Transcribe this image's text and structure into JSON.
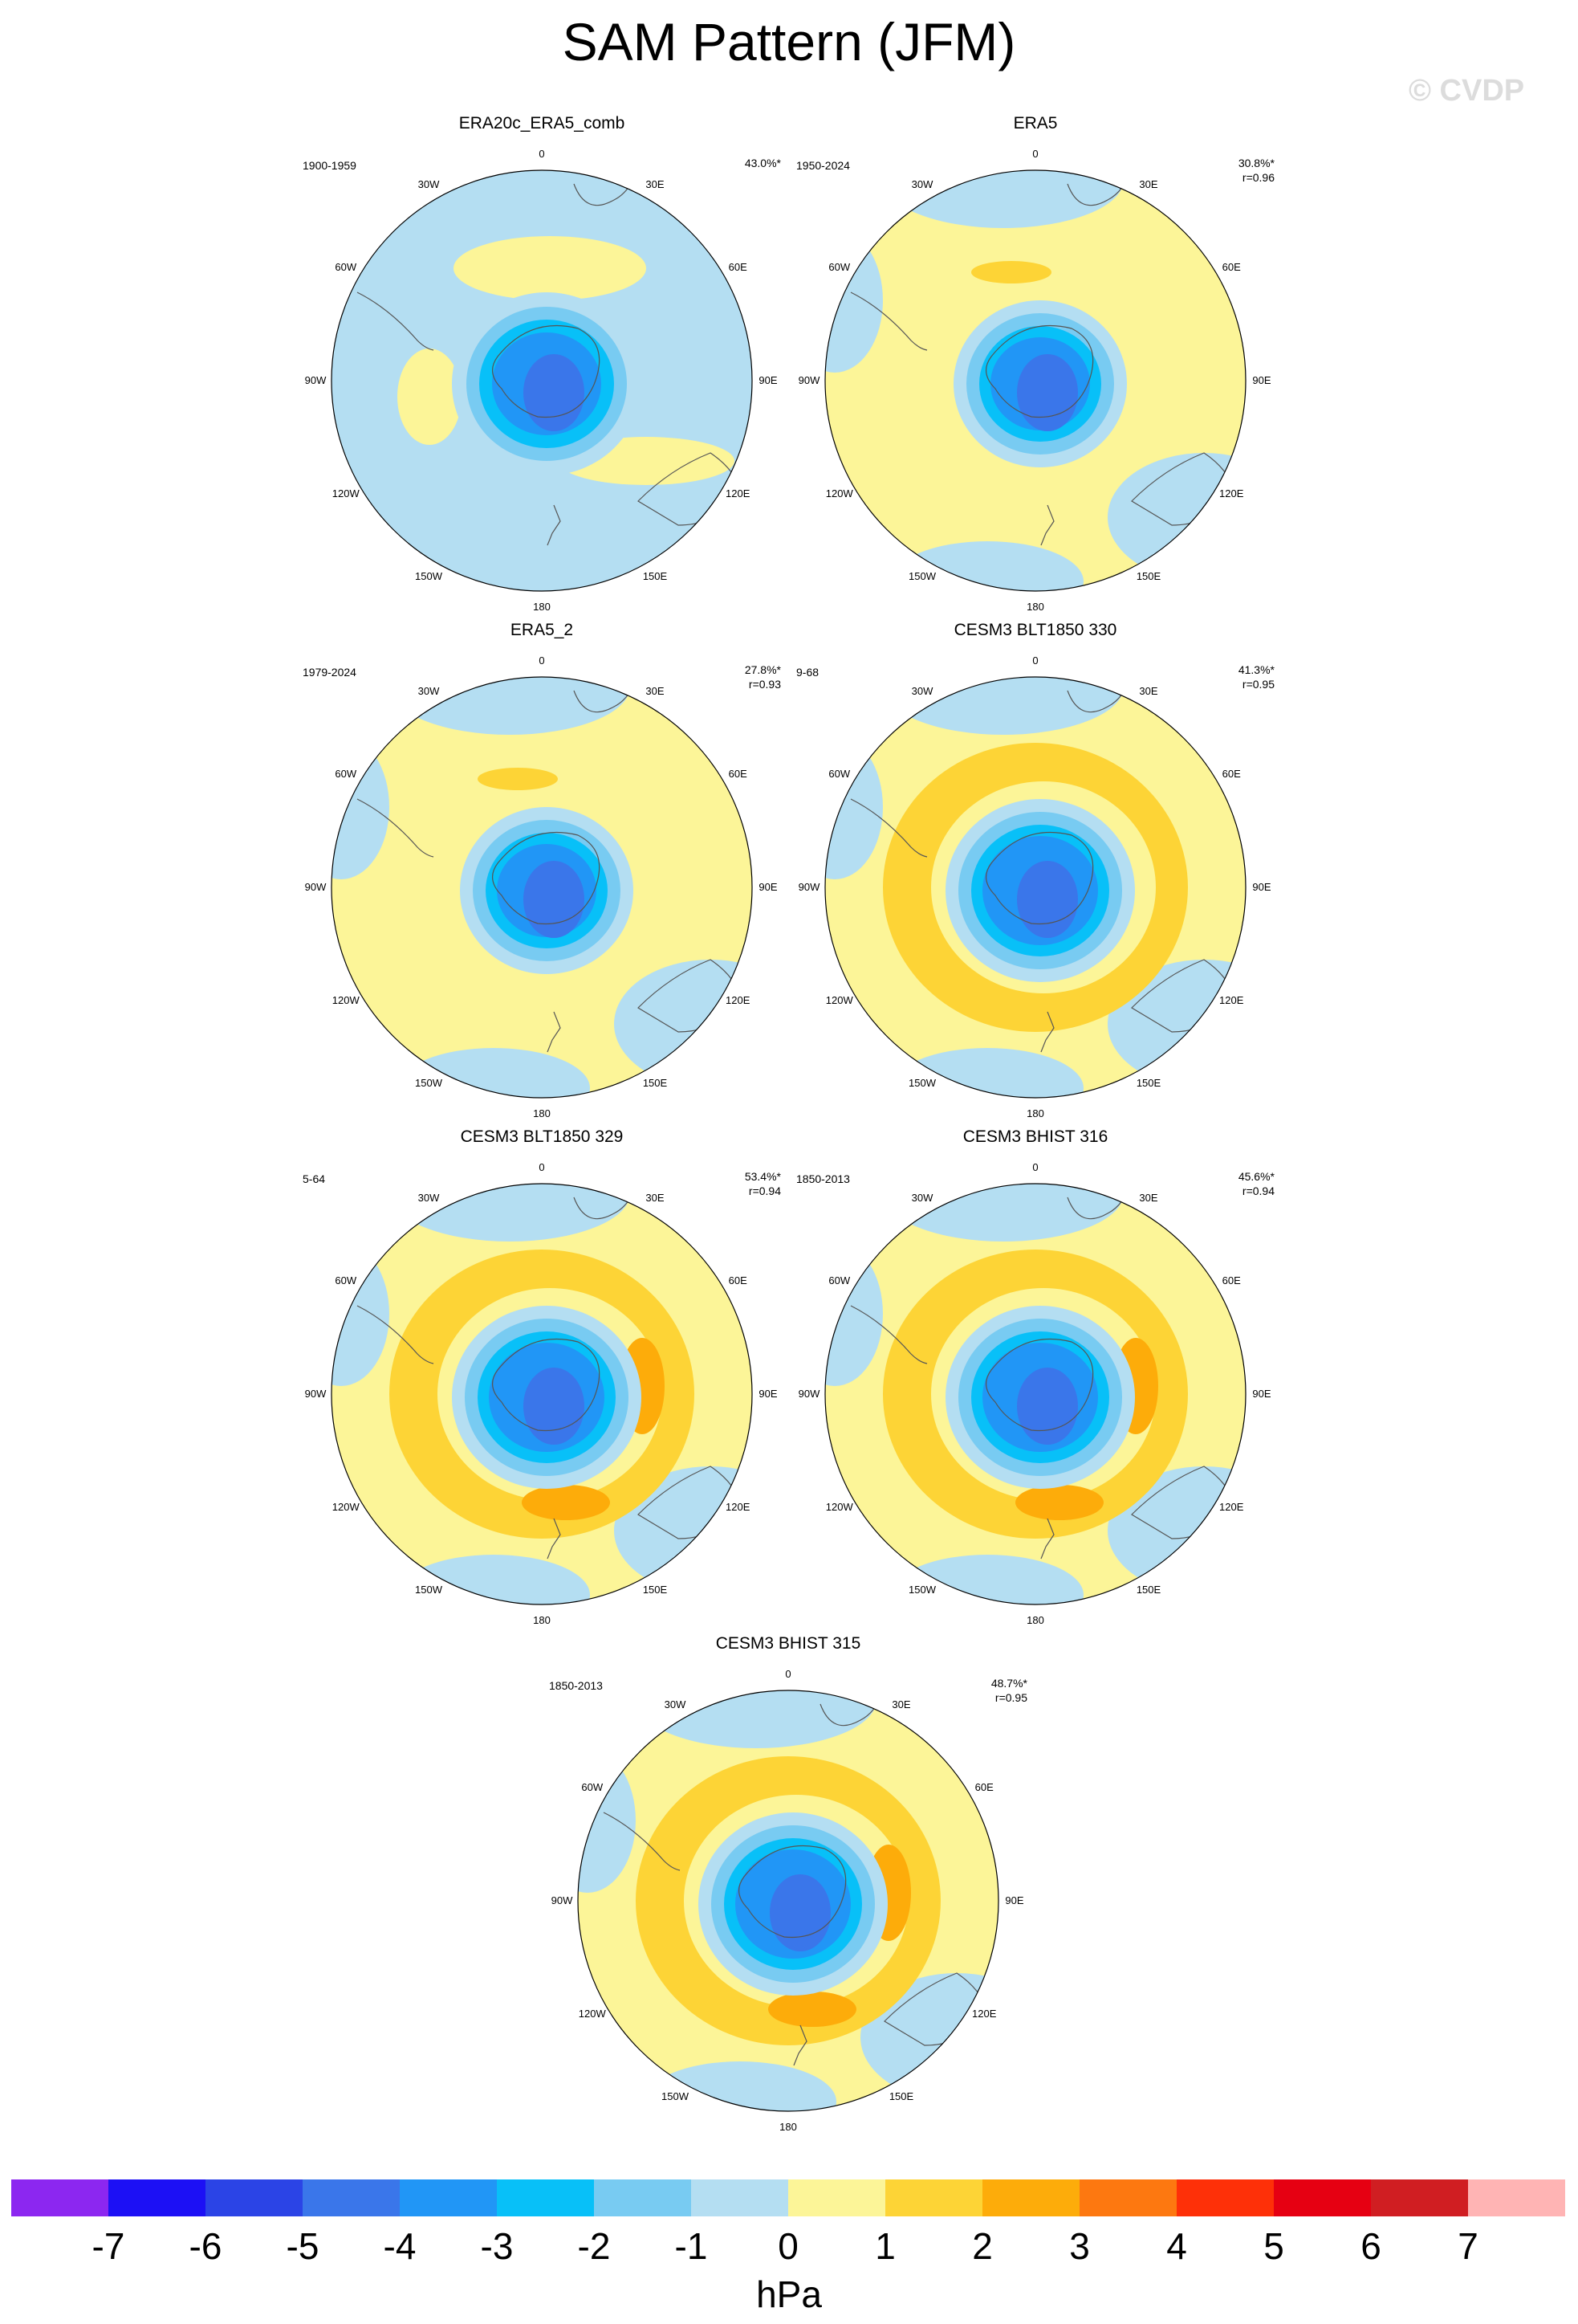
{
  "title": "SAM Pattern (JFM)",
  "watermark": "© CVDP",
  "panels": [
    {
      "title": "ERA20c_ERA5_comb",
      "period": "1900-1959",
      "variance": "43.0%*",
      "corr": "",
      "strength": 0
    },
    {
      "title": "ERA5",
      "period": "1950-2024",
      "variance": "30.8%*",
      "corr": "r=0.96",
      "strength": 1
    },
    {
      "title": "ERA5_2",
      "period": "1979-2024",
      "variance": "27.8%*",
      "corr": "r=0.93",
      "strength": 1
    },
    {
      "title": "CESM3 BLT1850 330",
      "period": "9-68",
      "variance": "41.3%*",
      "corr": "r=0.95",
      "strength": 2
    },
    {
      "title": "CESM3 BLT1850 329",
      "period": "5-64",
      "variance": "53.4%*",
      "corr": "r=0.94",
      "strength": 3
    },
    {
      "title": "CESM3 BHIST 316",
      "period": "1850-2013",
      "variance": "45.6%*",
      "corr": "r=0.94",
      "strength": 3
    },
    {
      "title": "CESM3 BHIST 315",
      "period": "1850-2013",
      "variance": "48.7%*",
      "corr": "r=0.95",
      "strength": 3
    }
  ],
  "map_labels": {
    "lon_top": "0",
    "lon_bottom": "180",
    "lon_30w": "30W",
    "lon_30e": "30E",
    "lon_60w": "60W",
    "lon_60e": "60E",
    "lon_90w": "90W",
    "lon_90e": "90E",
    "lon_120w": "120W",
    "lon_120e": "120E",
    "lon_150w": "150W",
    "lon_150e": "150E"
  },
  "colorbar": {
    "unit": "hPa",
    "ticks": [
      "-7",
      "-6",
      "-5",
      "-4",
      "-3",
      "-2",
      "-1",
      "0",
      "1",
      "2",
      "3",
      "4",
      "5",
      "6",
      "7"
    ],
    "colors": [
      "#8c27f0",
      "#1c10f5",
      "#2b44e6",
      "#3a76ea",
      "#2196f6",
      "#08c0f8",
      "#78cbf2",
      "#b4def2",
      "#fcf598",
      "#fdd436",
      "#fdac0a",
      "#fd7810",
      "#fe3008",
      "#e60012",
      "#d01e22",
      "#ffb4b4"
    ]
  },
  "legend_colors": {
    "neg7": "#8c27f0",
    "neg6": "#1c10f5",
    "neg5": "#2b44e6",
    "neg4": "#3a76ea",
    "neg3": "#2196f6",
    "neg2": "#08c0f8",
    "neg1": "#78cbf2",
    "neg0": "#b4def2",
    "pos0": "#fcf598",
    "pos1": "#fdd436",
    "pos2": "#fdac0a",
    "pos3": "#fd7810"
  }
}
